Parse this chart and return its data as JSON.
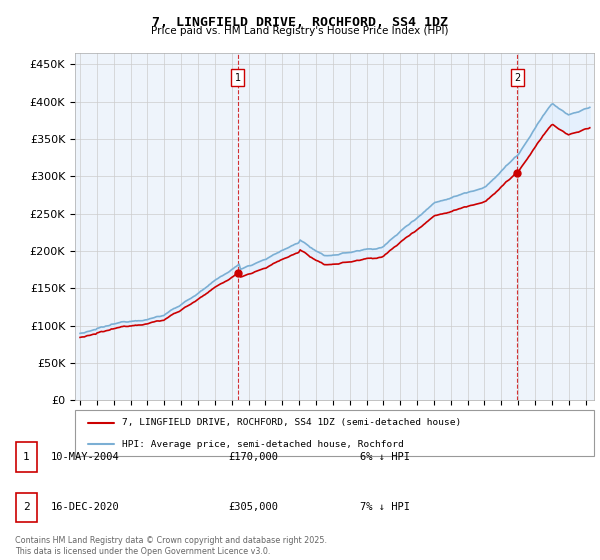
{
  "title": "7, LINGFIELD DRIVE, ROCHFORD, SS4 1DZ",
  "subtitle": "Price paid vs. HM Land Registry's House Price Index (HPI)",
  "ylabel_ticks": [
    "£0",
    "£50K",
    "£100K",
    "£150K",
    "£200K",
    "£250K",
    "£300K",
    "£350K",
    "£400K",
    "£450K"
  ],
  "ytick_vals": [
    0,
    50000,
    100000,
    150000,
    200000,
    250000,
    300000,
    350000,
    400000,
    450000
  ],
  "ylim": [
    0,
    465000
  ],
  "xlim_start": 1994.7,
  "xlim_end": 2025.5,
  "hpi_color": "#7bafd4",
  "hpi_fill_color": "#ddeeff",
  "price_color": "#cc0000",
  "vline_color": "#cc0000",
  "transaction1_x": 2004.36,
  "transaction1_price": 170000,
  "transaction2_x": 2020.95,
  "transaction2_price": 305000,
  "legend_line1": "7, LINGFIELD DRIVE, ROCHFORD, SS4 1DZ (semi-detached house)",
  "legend_line2": "HPI: Average price, semi-detached house, Rochford",
  "footnote": "Contains HM Land Registry data © Crown copyright and database right 2025.\nThis data is licensed under the Open Government Licence v3.0.",
  "table_row1": [
    "1",
    "10-MAY-2004",
    "£170,000",
    "6% ↓ HPI"
  ],
  "table_row2": [
    "2",
    "16-DEC-2020",
    "£305,000",
    "7% ↓ HPI"
  ],
  "background_color": "#ffffff",
  "grid_color": "#cccccc"
}
